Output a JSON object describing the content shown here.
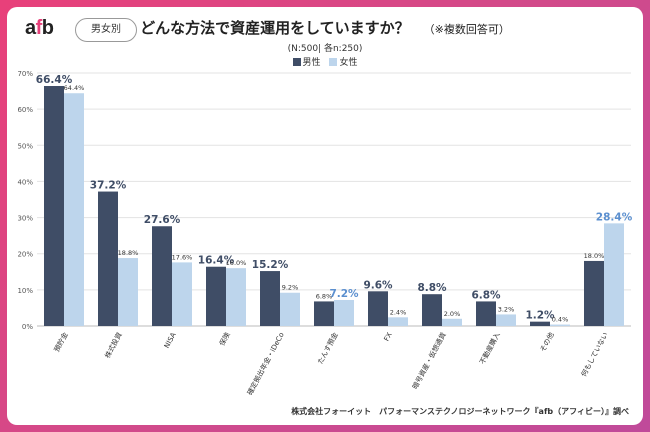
{
  "header": {
    "logo_left": "a",
    "logo_mid": "f",
    "logo_right": "b",
    "badge": "男女別",
    "title": "どんな方法で資産運用をしていますか？",
    "title_note": "（※複数回答可）",
    "subtitle": "(N:500| 各n:250)"
  },
  "legend": [
    {
      "name": "男性",
      "color": "#3f4d66"
    },
    {
      "name": "女性",
      "color": "#bdd5ec"
    }
  ],
  "footer": "株式会社フォーイット　パフォーマンステクノロジーネットワーク『afb（アフィビー）』調べ",
  "chart_data": {
    "type": "bar",
    "title": "どんな方法で資産運用をしていますか？",
    "ylim": [
      0,
      70
    ],
    "yticks": [
      "0%",
      "10%",
      "20%",
      "30%",
      "40%",
      "50%",
      "60%",
      "70%"
    ],
    "categories": [
      "預貯金",
      "株式投資",
      "NISA",
      "保険",
      "確定拠出年金・iDeCo",
      "たんす預金",
      "FX",
      "暗号資産・仮想通貨",
      "不動産購入",
      "その他",
      "何もしていない"
    ],
    "series": [
      {
        "name": "男性",
        "color": "#3f4d66",
        "values": [
          66.4,
          37.2,
          27.6,
          16.4,
          15.2,
          6.8,
          9.6,
          8.8,
          6.8,
          1.2,
          18.0
        ],
        "labels": [
          "66.4%",
          "37.2%",
          "27.6%",
          "16.4%",
          "15.2%",
          "6.8%",
          "9.6%",
          "8.8%",
          "6.8%",
          "1.2%",
          "18.0%"
        ],
        "emphasis": [
          true,
          true,
          true,
          true,
          true,
          false,
          true,
          true,
          true,
          true,
          false
        ]
      },
      {
        "name": "女性",
        "color": "#bdd5ec",
        "values": [
          64.4,
          18.8,
          17.6,
          16.0,
          9.2,
          7.2,
          2.4,
          2.0,
          3.2,
          0.4,
          28.4
        ],
        "labels": [
          "64.4%",
          "18.8%",
          "17.6%",
          "16.0%",
          "9.2%",
          "7.2%",
          "2.4%",
          "2.0%",
          "3.2%",
          "0.4%",
          "28.4%"
        ],
        "emphasis": [
          false,
          false,
          false,
          false,
          false,
          true,
          false,
          false,
          false,
          false,
          true
        ]
      }
    ]
  }
}
